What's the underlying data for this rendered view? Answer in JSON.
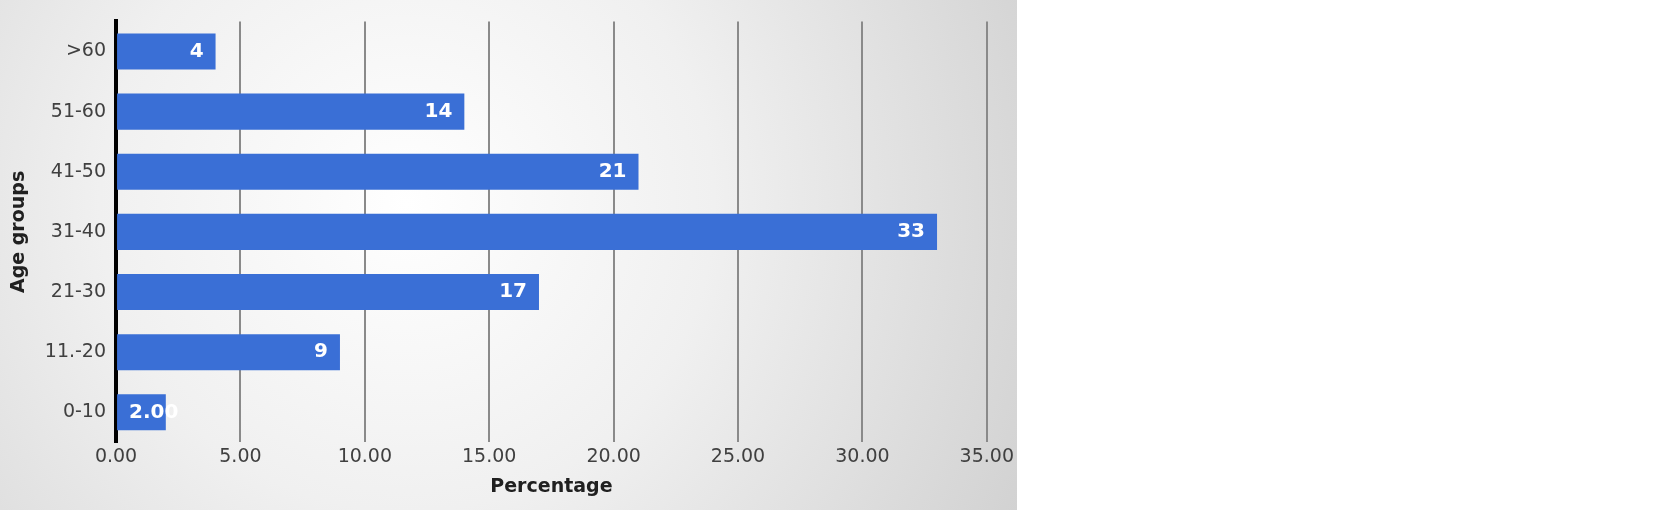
{
  "chart_data": {
    "type": "bar",
    "orientation": "horizontal",
    "xlabel": "Percentage",
    "ylabel": "Age groups",
    "categories": [
      ">60",
      "51-60",
      "41-50",
      "31-40",
      "21-30",
      "11.-20",
      "0-10"
    ],
    "values": [
      4,
      14,
      21,
      33,
      17,
      9,
      2
    ],
    "value_labels": [
      "4",
      "14",
      "21",
      "33",
      "17",
      "9",
      "2.00"
    ],
    "color": "#3a6fd6",
    "xlim": [
      0,
      35
    ],
    "xticks": [
      {
        "value": 0,
        "label": "0.00"
      },
      {
        "value": 5,
        "label": "5.00"
      },
      {
        "value": 10,
        "label": "10.00"
      },
      {
        "value": 15,
        "label": "15.00"
      },
      {
        "value": 20,
        "label": "20.00"
      },
      {
        "value": 25,
        "label": "25.00"
      },
      {
        "value": 30,
        "label": "30.00"
      },
      {
        "value": 35,
        "label": "35.00"
      }
    ],
    "grid": "x",
    "legend": false
  }
}
